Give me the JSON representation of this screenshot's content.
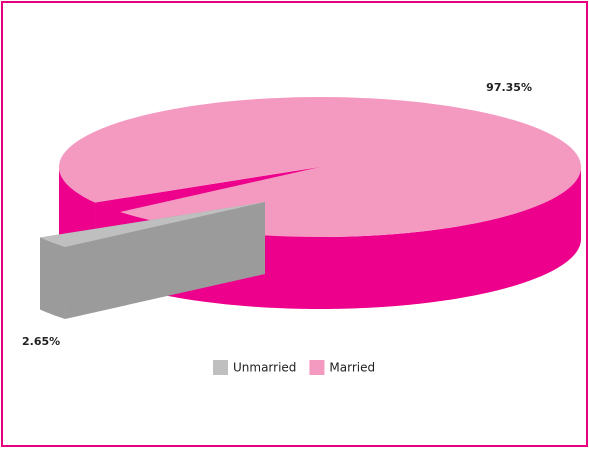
{
  "chart_data": {
    "type": "pie3d",
    "categories": [
      "Unmarried",
      "Married"
    ],
    "values": [
      2.65,
      97.35
    ],
    "value_labels": [
      "2.65%",
      "97.35%"
    ],
    "colors": [
      "#bfbfbf",
      "#f49ac1"
    ],
    "side_colors": [
      "#9b9b9b",
      "#ec008c"
    ],
    "legend": "bottom"
  }
}
